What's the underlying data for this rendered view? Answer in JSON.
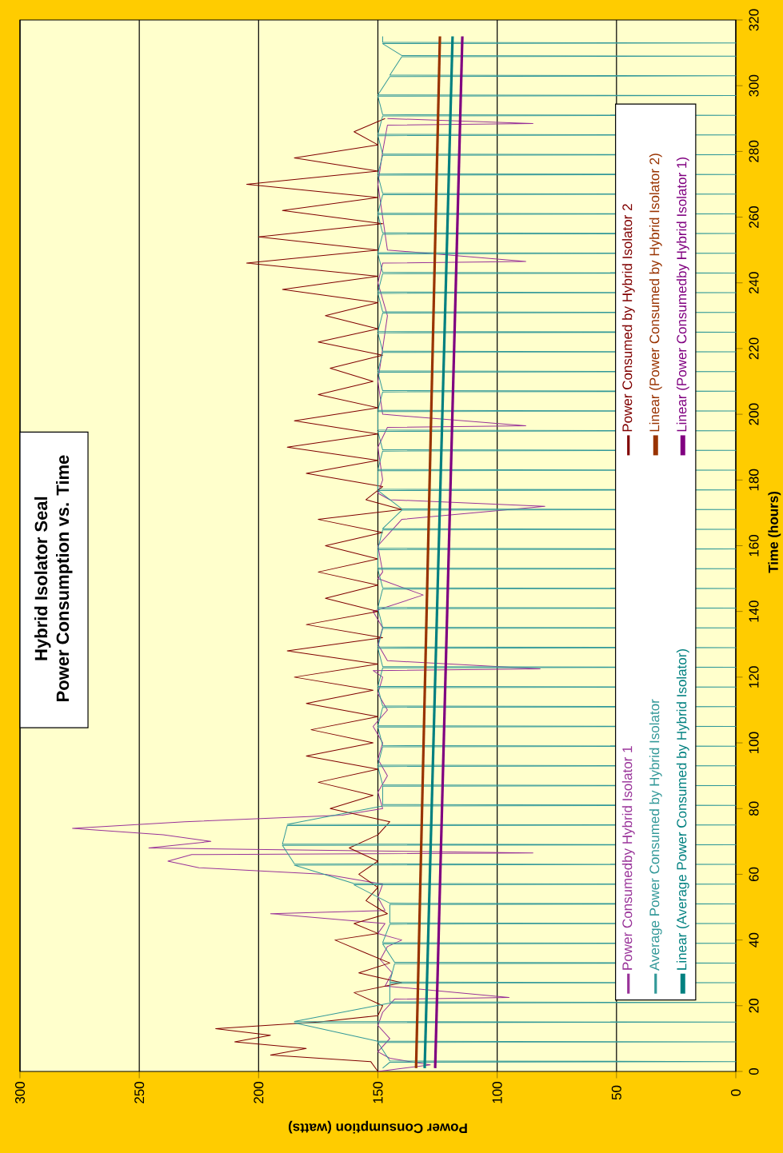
{
  "chart_data": {
    "type": "line",
    "title": "Hybrid Isolator Seal",
    "subtitle": "Power Consumption vs. Time",
    "xlabel": "Power Consumption (watts)",
    "ylabel": "Time (hours)",
    "xlim": [
      300,
      0
    ],
    "ylim": [
      0,
      320
    ],
    "xticks": [
      300,
      250,
      200,
      150,
      100,
      50,
      0
    ],
    "yticks": [
      0,
      20,
      40,
      60,
      80,
      100,
      120,
      140,
      160,
      180,
      200,
      220,
      240,
      260,
      280,
      300,
      320
    ],
    "grid": "x",
    "legend": "right",
    "marker": "none",
    "line_style": "solid",
    "series": [
      {
        "name": "Power Consumedby Hybrid Isolator 1",
        "color": "#993399",
        "values": [
          0,
          2,
          4,
          6,
          10,
          14,
          18,
          22,
          22.5,
          26,
          30,
          34,
          38,
          40,
          42,
          45,
          48,
          49,
          53,
          57,
          60,
          62,
          64,
          66,
          66.5,
          68,
          70,
          72,
          74,
          76,
          78,
          80,
          85,
          90,
          95,
          100,
          105,
          110,
          115,
          120,
          122,
          122.5,
          125,
          130,
          135,
          140,
          145,
          150,
          152,
          160,
          168,
          172,
          174,
          176,
          180,
          190,
          196,
          196.5,
          200,
          210,
          220,
          230,
          240,
          246,
          246.5,
          250,
          260,
          270,
          280,
          288,
          288.5,
          290
        ],
        "x": [
          150,
          128,
          145,
          150,
          145,
          150,
          148,
          143,
          95,
          147,
          144,
          149,
          146,
          140,
          150,
          147,
          195,
          147,
          150,
          148,
          172,
          225,
          238,
          228,
          85,
          246,
          220,
          240,
          278,
          231,
          165,
          148,
          150,
          146,
          150,
          148,
          152,
          146,
          150,
          148,
          152,
          82,
          146,
          150,
          148,
          152,
          131,
          150,
          148,
          150,
          140,
          80,
          145,
          150,
          148,
          150,
          146,
          88,
          148,
          150,
          148,
          146,
          150,
          148,
          88,
          146,
          148,
          150,
          148,
          146,
          85,
          146
        ]
      },
      {
        "name": "Power Consumed by Hybrid Isolator 2",
        "color": "#800000",
        "values": [
          0,
          3,
          5,
          7,
          9,
          11,
          13,
          15,
          17,
          20,
          24,
          27,
          30,
          33,
          36,
          40,
          42,
          45,
          48,
          52,
          56,
          60,
          64,
          68,
          72,
          76,
          80,
          84,
          88,
          92,
          96,
          100,
          104,
          108,
          112,
          116,
          120,
          124,
          128,
          132,
          136,
          140,
          144,
          148,
          152,
          156,
          160,
          164,
          168,
          171,
          174,
          178,
          182,
          186,
          190,
          194,
          198,
          202,
          206,
          210,
          214,
          218,
          222,
          226,
          230,
          234,
          238,
          242,
          246,
          250,
          254,
          258,
          262,
          266,
          270,
          274,
          278,
          282,
          286,
          290
        ],
        "x": [
          150,
          153,
          195,
          180,
          210,
          195,
          218,
          175,
          150,
          148,
          160,
          140,
          158,
          145,
          155,
          168,
          150,
          160,
          146,
          155,
          150,
          158,
          150,
          162,
          150,
          145,
          170,
          152,
          175,
          150,
          180,
          152,
          178,
          150,
          180,
          152,
          185,
          150,
          188,
          148,
          180,
          150,
          172,
          150,
          175,
          150,
          172,
          148,
          175,
          140,
          155,
          148,
          180,
          150,
          188,
          150,
          185,
          150,
          175,
          152,
          170,
          148,
          175,
          150,
          172,
          150,
          190,
          150,
          205,
          150,
          200,
          148,
          190,
          150,
          205,
          150,
          185,
          150,
          160,
          147
        ]
      },
      {
        "name": "Average Power Consumed by Hybrid Isolator",
        "color": "#339999",
        "values": [
          1,
          2.8,
          3,
          3.2,
          8.8,
          9,
          9.2,
          14.8,
          15,
          15.2,
          20.8,
          21,
          21.2,
          26.8,
          27,
          27.2,
          32.8,
          33,
          33.2,
          38.8,
          39,
          39.2,
          44.8,
          45,
          45.2,
          50.8,
          51,
          51.2,
          56.8,
          57,
          57.2,
          62.8,
          63,
          63.2,
          68.8,
          69,
          69.2,
          74.8,
          75,
          75.2,
          80.8,
          81,
          81.2,
          86.8,
          87,
          87.2,
          92.8,
          93,
          93.2,
          98.8,
          99,
          99.2,
          104.8,
          105,
          105.2,
          110.8,
          111,
          111.2,
          116.8,
          117,
          117.2,
          122.8,
          123,
          123.2,
          128.8,
          129,
          129.2,
          134.8,
          135,
          135.2,
          140.8,
          141,
          141.2,
          146.8,
          147,
          147.2,
          152.8,
          153,
          153.2,
          158.8,
          159,
          159.2,
          164.8,
          165,
          165.2,
          170.8,
          171,
          171.2,
          176.8,
          177,
          177.2,
          182.8,
          183,
          183.2,
          188.8,
          189,
          189.2,
          194.8,
          195,
          195.2,
          200.8,
          201,
          201.2,
          206.8,
          207,
          207.2,
          212.8,
          213,
          213.2,
          218.8,
          219,
          219.2,
          224.8,
          225,
          225.2,
          230.8,
          231,
          231.2,
          236.8,
          237,
          237.2,
          242.8,
          243,
          243.2,
          248.8,
          249,
          249.2,
          254.8,
          255,
          255.2,
          260.8,
          261,
          261.2,
          266.8,
          267,
          267.2,
          272.8,
          273,
          273.2,
          278.8,
          279,
          279.2,
          284.8,
          285,
          285.2,
          290.8,
          291,
          291.2,
          296.8,
          297,
          297.2,
          302.8,
          303,
          303.2,
          308.8,
          309,
          309.2,
          312.8,
          313,
          313.2,
          315
        ],
        "x": [
          148,
          145,
          0,
          145,
          150,
          0,
          150,
          185,
          0,
          185,
          145,
          0,
          145,
          145,
          0,
          145,
          143,
          0,
          143,
          148,
          0,
          148,
          145,
          0,
          145,
          145,
          0,
          145,
          160,
          0,
          160,
          185,
          0,
          185,
          190,
          0,
          190,
          188,
          0,
          188,
          148,
          0,
          148,
          148,
          0,
          148,
          150,
          0,
          150,
          148,
          0,
          148,
          150,
          0,
          150,
          148,
          0,
          148,
          150,
          0,
          150,
          148,
          0,
          148,
          150,
          0,
          150,
          148,
          0,
          148,
          150,
          0,
          150,
          148,
          0,
          148,
          150,
          0,
          150,
          150,
          0,
          150,
          148,
          0,
          148,
          140,
          0,
          140,
          150,
          0,
          150,
          150,
          0,
          150,
          148,
          0,
          148,
          150,
          0,
          150,
          150,
          0,
          150,
          148,
          0,
          148,
          150,
          0,
          150,
          148,
          0,
          148,
          150,
          0,
          150,
          148,
          0,
          148,
          150,
          0,
          150,
          148,
          0,
          148,
          150,
          0,
          150,
          148,
          0,
          148,
          150,
          0,
          150,
          148,
          0,
          148,
          150,
          0,
          150,
          148,
          0,
          148,
          150,
          0,
          150,
          148,
          0,
          148,
          150,
          0,
          150,
          145,
          0,
          145,
          140,
          0,
          140,
          148,
          0,
          148,
          148
        ]
      },
      {
        "name": "Linear (Power Consumed by Hybrid Isolator 2)",
        "color": "#993300",
        "x": [
          134,
          124
        ],
        "values": [
          1,
          315
        ]
      },
      {
        "name": "Linear (Average Power Consumed by Hybrid Isolator)",
        "color": "#008080",
        "x": [
          130.4,
          118.7
        ],
        "values": [
          1,
          315
        ]
      },
      {
        "name": "Linear (Power Consumedby Hybrid Isolator 1)",
        "color": "#800080",
        "x": [
          126,
          114.6
        ],
        "values": [
          1,
          315
        ]
      }
    ]
  }
}
